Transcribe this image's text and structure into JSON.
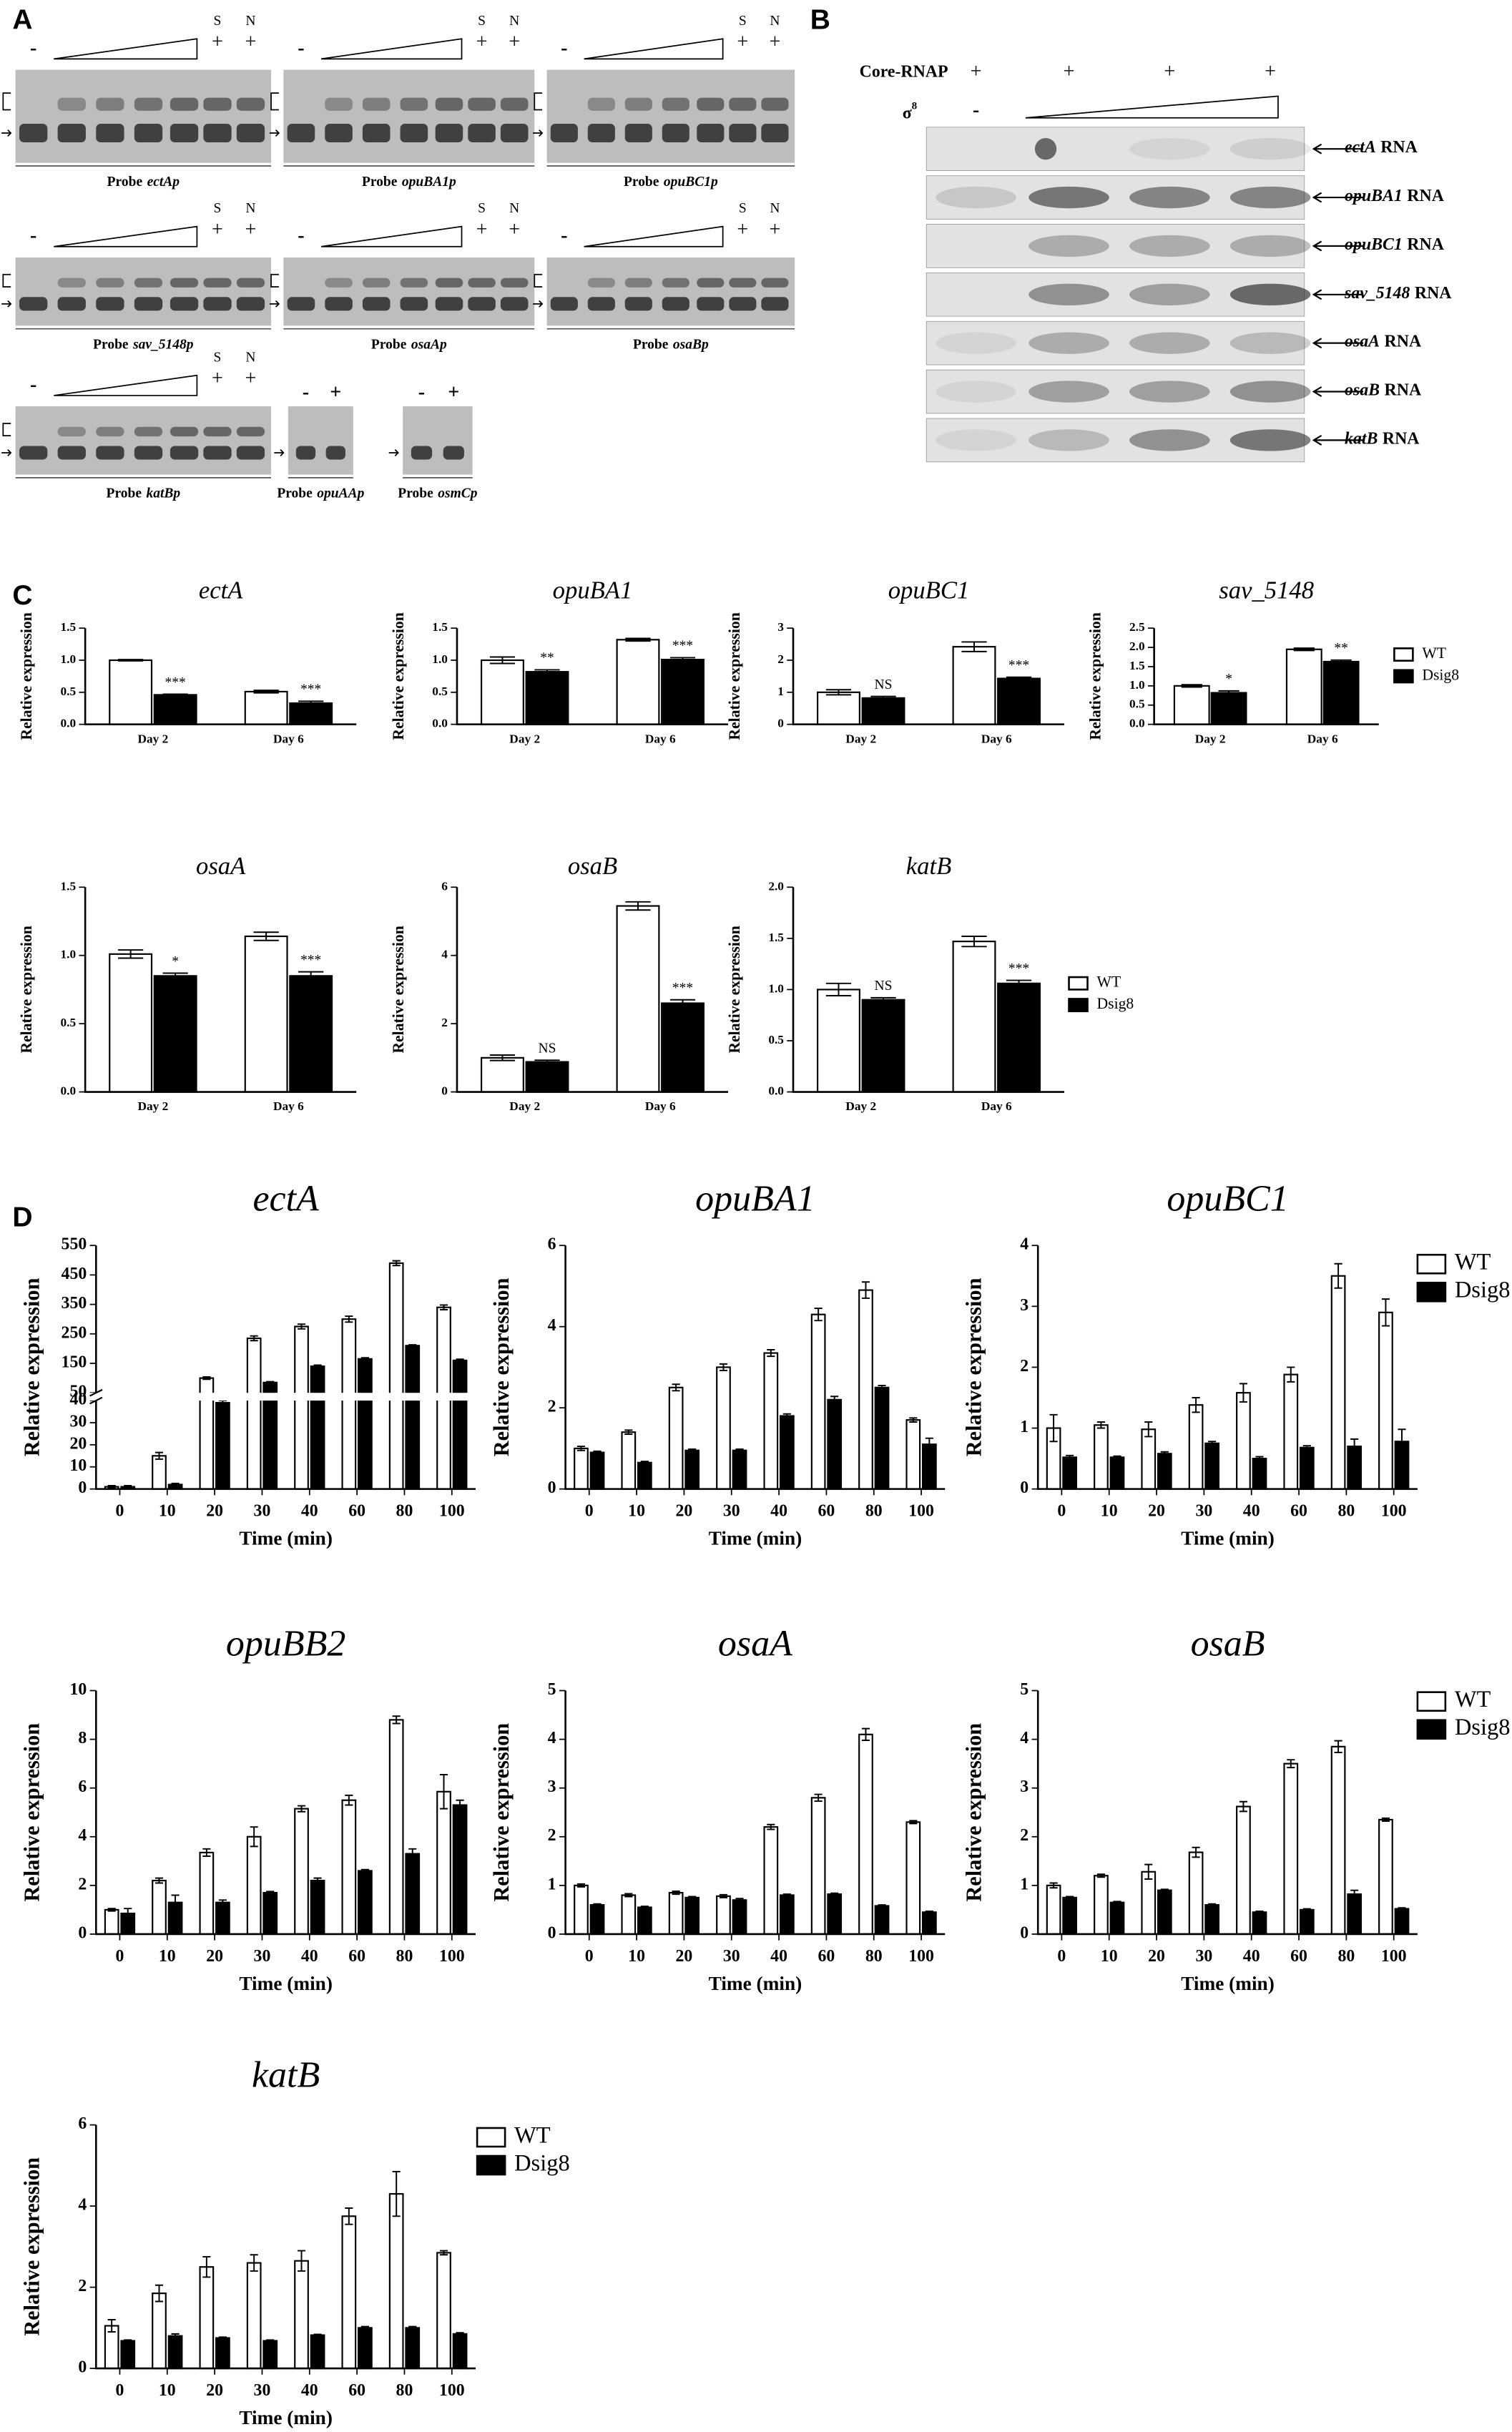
{
  "panel_labels": [
    "A",
    "B",
    "C",
    "D"
  ],
  "panel_a": {
    "gels": [
      {
        "probe": "Probe",
        "name": "ectAp",
        "signs": [
          "-",
          "+",
          "+"
        ],
        "treatments": [
          "S",
          "N"
        ]
      },
      {
        "probe": "Probe",
        "name": "opuBA1p",
        "signs": [
          "-",
          "+",
          "+"
        ],
        "treatments": [
          "S",
          "N"
        ]
      },
      {
        "probe": "Probe",
        "name": "opuBC1p",
        "signs": [
          "-",
          "+",
          "+"
        ],
        "treatments": [
          "S",
          "N"
        ]
      },
      {
        "probe": "Probe",
        "name": "sav_5148p",
        "signs": [
          "-",
          "+",
          "+"
        ],
        "treatments": [
          "S",
          "N"
        ]
      },
      {
        "probe": "Probe",
        "name": "osaAp",
        "signs": [
          "-",
          "+",
          "+"
        ],
        "treatments": [
          "S",
          "N"
        ]
      },
      {
        "probe": "Probe",
        "name": "osaBp",
        "signs": [
          "-",
          "+",
          "+"
        ],
        "treatments": [
          "S",
          "N"
        ]
      },
      {
        "probe": "Probe",
        "name": "katBp",
        "signs": [
          "-",
          "+",
          "+"
        ],
        "treatments": [
          "S",
          "N"
        ]
      },
      {
        "probe": "Probe",
        "name": "opuAAp",
        "signs": [
          "-",
          "+"
        ]
      },
      {
        "probe": "Probe",
        "name": "osmCp",
        "signs": [
          "-",
          "+"
        ]
      }
    ]
  },
  "panel_b": {
    "core_label": "Core-RNAP",
    "core_signs": [
      "+",
      "+",
      "+",
      "+"
    ],
    "sigma_label": "σ",
    "sigma_sup": "8",
    "sigma_signs": [
      "-"
    ],
    "rows": [
      {
        "gene": "ectA",
        "suffix": "RNA"
      },
      {
        "gene": "opuBA1",
        "suffix": "RNA"
      },
      {
        "gene": "opuBC1",
        "suffix": "RNA"
      },
      {
        "gene": "sav_5148",
        "suffix": "RNA"
      },
      {
        "gene": "osaA",
        "suffix": "RNA"
      },
      {
        "gene": "osaB",
        "suffix": "RNA"
      },
      {
        "gene": "katB",
        "suffix": "RNA"
      }
    ]
  },
  "chart_data": [
    {
      "type": "bar",
      "title": "ectA",
      "ylabel": "Relative expression",
      "categories": [
        "Day 2",
        "Day 6"
      ],
      "series": [
        {
          "color": "#ffffff",
          "values": [
            1.0,
            0.51
          ],
          "errors": [
            0.01,
            0.02
          ]
        },
        {
          "color": "#000000",
          "values": [
            0.46,
            0.33
          ],
          "errors": [
            0.01,
            0.03
          ]
        }
      ],
      "annotations": [
        "***",
        "***"
      ],
      "ylim": [
        0,
        1.5
      ],
      "yticks": [
        {
          "value": 0,
          "label": "0.0"
        },
        0.5,
        {
          "value": 1,
          "label": "1.0"
        },
        1.5
      ]
    },
    {
      "type": "bar",
      "title": "opuBA1",
      "ylabel": "Relative expression",
      "categories": [
        "Day 2",
        "Day 6"
      ],
      "series": [
        {
          "color": "#ffffff",
          "values": [
            1.0,
            1.32
          ],
          "errors": [
            0.05,
            0.02
          ]
        },
        {
          "color": "#000000",
          "values": [
            0.82,
            1.01
          ],
          "errors": [
            0.03,
            0.03
          ]
        }
      ],
      "annotations": [
        "**",
        "***"
      ],
      "ylim": [
        0,
        1.5
      ],
      "yticks": [
        {
          "value": 0,
          "label": "0.0"
        },
        0.5,
        {
          "value": 1,
          "label": "1.0"
        },
        1.5
      ]
    },
    {
      "type": "bar",
      "title": "opuBC1",
      "ylabel": "Relative expression",
      "categories": [
        "Day 2",
        "Day 6"
      ],
      "series": [
        {
          "color": "#ffffff",
          "values": [
            1.0,
            2.42
          ],
          "errors": [
            0.08,
            0.15
          ]
        },
        {
          "color": "#000000",
          "values": [
            0.82,
            1.43
          ],
          "errors": [
            0.05,
            0.04
          ]
        }
      ],
      "annotations": [
        "NS",
        "***"
      ],
      "ylim": [
        0,
        3
      ],
      "yticks": [
        0,
        1,
        2,
        3
      ]
    },
    {
      "type": "bar",
      "title": "sav_5148",
      "ylabel": "Relative expression",
      "categories": [
        "Day 2",
        "Day 6"
      ],
      "series": [
        {
          "name": "WT",
          "color": "#ffffff",
          "values": [
            1.0,
            1.95
          ],
          "errors": [
            0.03,
            0.03
          ]
        },
        {
          "name": "Dsig8",
          "color": "#000000",
          "values": [
            0.82,
            1.63
          ],
          "errors": [
            0.05,
            0.04
          ]
        }
      ],
      "annotations": [
        "*",
        "**"
      ],
      "ylim": [
        0,
        2.5
      ],
      "yticks": [
        {
          "value": 0,
          "label": "0.0"
        },
        0.5,
        {
          "value": 1,
          "label": "1.0"
        },
        1.5,
        {
          "value": 2,
          "label": "2.0"
        },
        2.5
      ],
      "legend": "right"
    },
    {
      "type": "bar",
      "title": "osaA",
      "ylabel": "Relative expression",
      "categories": [
        "Day 2",
        "Day 6"
      ],
      "series": [
        {
          "color": "#ffffff",
          "values": [
            1.01,
            1.14
          ],
          "errors": [
            0.03,
            0.03
          ]
        },
        {
          "color": "#000000",
          "values": [
            0.85,
            0.85
          ],
          "errors": [
            0.02,
            0.03
          ]
        }
      ],
      "annotations": [
        "*",
        "***"
      ],
      "ylim": [
        0,
        1.5
      ],
      "yticks": [
        {
          "value": 0,
          "label": "0.0"
        },
        0.5,
        {
          "value": 1,
          "label": "1.0"
        },
        1.5
      ]
    },
    {
      "type": "bar",
      "title": "osaB",
      "ylabel": "Relative expression",
      "categories": [
        "Day 2",
        "Day 6"
      ],
      "series": [
        {
          "color": "#ffffff",
          "values": [
            1.0,
            5.45
          ],
          "errors": [
            0.08,
            0.12
          ]
        },
        {
          "color": "#000000",
          "values": [
            0.88,
            2.6
          ],
          "errors": [
            0.05,
            0.1
          ]
        }
      ],
      "annotations": [
        "NS",
        "***"
      ],
      "ylim": [
        0,
        6
      ],
      "yticks": [
        0,
        2,
        4,
        6
      ]
    },
    {
      "type": "bar",
      "title": "katB",
      "ylabel": "Relative expression",
      "categories": [
        "Day 2",
        "Day 6"
      ],
      "series": [
        {
          "name": "WT",
          "color": "#ffffff",
          "values": [
            1.0,
            1.47
          ],
          "errors": [
            0.06,
            0.05
          ]
        },
        {
          "name": "Dsig8",
          "color": "#000000",
          "values": [
            0.9,
            1.06
          ],
          "errors": [
            0.02,
            0.03
          ]
        }
      ],
      "annotations": [
        "NS",
        "***"
      ],
      "ylim": [
        0,
        2
      ],
      "yticks": [
        {
          "value": 0,
          "label": "0.0"
        },
        0.5,
        {
          "value": 1,
          "label": "1.0"
        },
        1.5,
        {
          "value": 2,
          "label": "2.0"
        }
      ],
      "legend": "right"
    },
    {
      "type": "bar",
      "title": "ectA",
      "ylabel": "Relative expression",
      "xlabel": "Time (min)",
      "categories": [
        "0",
        "10",
        "20",
        "30",
        "40",
        "60",
        "80",
        "100"
      ],
      "series": [
        {
          "color": "#ffffff",
          "values": [
            1,
            15,
            100,
            235,
            275,
            300,
            490,
            340
          ],
          "errors": [
            0.5,
            1.5,
            4,
            8,
            8,
            10,
            8,
            8
          ]
        },
        {
          "color": "#000000",
          "values": [
            1,
            2,
            39,
            85,
            140,
            165,
            210,
            160
          ],
          "errors": [
            0.5,
            0.5,
            1,
            3,
            4,
            4,
            3,
            4
          ]
        }
      ],
      "ylim": [
        0,
        550
      ],
      "y_break": [
        40,
        50
      ],
      "yticks": [
        0,
        10,
        20,
        30,
        40,
        50,
        150,
        250,
        350,
        450,
        550
      ]
    },
    {
      "type": "bar",
      "title": "opuBA1",
      "ylabel": "Relative expression",
      "xlabel": "Time (min)",
      "categories": [
        "0",
        "10",
        "20",
        "30",
        "40",
        "60",
        "80",
        "100"
      ],
      "series": [
        {
          "color": "#ffffff",
          "values": [
            1.0,
            1.4,
            2.5,
            3.0,
            3.35,
            4.3,
            4.9,
            1.7
          ],
          "errors": [
            0.05,
            0.05,
            0.08,
            0.08,
            0.08,
            0.15,
            0.2,
            0.05
          ]
        },
        {
          "color": "#000000",
          "values": [
            0.9,
            0.65,
            0.95,
            0.95,
            1.8,
            2.2,
            2.5,
            1.1
          ],
          "errors": [
            0.03,
            0.03,
            0.03,
            0.03,
            0.05,
            0.08,
            0.05,
            0.15
          ]
        }
      ],
      "ylim": [
        0,
        6
      ],
      "yticks": [
        0,
        2,
        4,
        6
      ]
    },
    {
      "type": "bar",
      "title": "opuBC1",
      "ylabel": "Relative expression",
      "xlabel": "Time (min)",
      "categories": [
        "0",
        "10",
        "20",
        "30",
        "40",
        "60",
        "80",
        "100"
      ],
      "series": [
        {
          "name": "WT",
          "color": "#ffffff",
          "values": [
            1.0,
            1.05,
            0.98,
            1.38,
            1.58,
            1.88,
            3.5,
            2.9
          ],
          "errors": [
            0.22,
            0.05,
            0.12,
            0.12,
            0.15,
            0.12,
            0.2,
            0.22
          ]
        },
        {
          "name": "Dsig8",
          "color": "#000000",
          "values": [
            0.52,
            0.52,
            0.58,
            0.75,
            0.5,
            0.68,
            0.7,
            0.78
          ],
          "errors": [
            0.03,
            0.02,
            0.03,
            0.03,
            0.03,
            0.03,
            0.12,
            0.2
          ]
        }
      ],
      "ylim": [
        0,
        4
      ],
      "yticks": [
        0,
        1,
        2,
        3,
        4
      ],
      "legend": "right"
    },
    {
      "type": "bar",
      "title": "opuBB2",
      "ylabel": "Relative expression",
      "xlabel": "Time (min)",
      "categories": [
        "0",
        "10",
        "20",
        "30",
        "40",
        "60",
        "80",
        "100"
      ],
      "series": [
        {
          "color": "#ffffff",
          "values": [
            1.0,
            2.2,
            3.35,
            4.0,
            5.15,
            5.5,
            8.8,
            5.85
          ],
          "errors": [
            0.05,
            0.1,
            0.15,
            0.4,
            0.12,
            0.2,
            0.15,
            0.7
          ]
        },
        {
          "color": "#000000",
          "values": [
            0.85,
            1.3,
            1.3,
            1.7,
            2.2,
            2.6,
            3.3,
            5.3
          ],
          "errors": [
            0.2,
            0.3,
            0.1,
            0.05,
            0.1,
            0.05,
            0.2,
            0.2
          ]
        }
      ],
      "ylim": [
        0,
        10
      ],
      "yticks": [
        0,
        2,
        4,
        6,
        8,
        10
      ]
    },
    {
      "type": "bar",
      "title": "osaA",
      "ylabel": "Relative expression",
      "xlabel": "Time (min)",
      "categories": [
        "0",
        "10",
        "20",
        "30",
        "40",
        "60",
        "80",
        "100"
      ],
      "series": [
        {
          "color": "#ffffff",
          "values": [
            1.0,
            0.8,
            0.85,
            0.78,
            2.2,
            2.8,
            4.1,
            2.3
          ],
          "errors": [
            0.03,
            0.03,
            0.03,
            0.03,
            0.05,
            0.07,
            0.12,
            0.03
          ]
        },
        {
          "color": "#000000",
          "values": [
            0.6,
            0.55,
            0.75,
            0.7,
            0.8,
            0.82,
            0.58,
            0.45
          ],
          "errors": [
            0.02,
            0.02,
            0.02,
            0.03,
            0.02,
            0.02,
            0.02,
            0.02
          ]
        }
      ],
      "ylim": [
        0,
        5
      ],
      "yticks": [
        0,
        1,
        2,
        3,
        4,
        5
      ]
    },
    {
      "type": "bar",
      "title": "osaB",
      "ylabel": "Relative expression",
      "xlabel": "Time (min)",
      "categories": [
        "0",
        "10",
        "20",
        "30",
        "40",
        "60",
        "80",
        "100"
      ],
      "series": [
        {
          "name": "WT",
          "color": "#ffffff",
          "values": [
            1.0,
            1.2,
            1.28,
            1.68,
            2.62,
            3.5,
            3.85,
            2.35
          ],
          "errors": [
            0.05,
            0.03,
            0.15,
            0.1,
            0.1,
            0.08,
            0.12,
            0.03
          ]
        },
        {
          "name": "Dsig8",
          "color": "#000000",
          "values": [
            0.75,
            0.65,
            0.9,
            0.6,
            0.45,
            0.5,
            0.82,
            0.52
          ],
          "errors": [
            0.02,
            0.02,
            0.02,
            0.02,
            0.02,
            0.02,
            0.08,
            0.02
          ]
        }
      ],
      "ylim": [
        0,
        5
      ],
      "yticks": [
        0,
        1,
        2,
        3,
        4,
        5
      ],
      "legend": "right"
    },
    {
      "type": "bar",
      "title": "katB",
      "ylabel": "Relative expression",
      "xlabel": "Time (min)",
      "categories": [
        "0",
        "10",
        "20",
        "30",
        "40",
        "60",
        "80",
        "100"
      ],
      "series": [
        {
          "name": "WT",
          "color": "#ffffff",
          "values": [
            1.05,
            1.85,
            2.5,
            2.6,
            2.65,
            3.75,
            4.3,
            2.85
          ],
          "errors": [
            0.15,
            0.2,
            0.25,
            0.2,
            0.25,
            0.2,
            0.55,
            0.05
          ]
        },
        {
          "name": "Dsig8",
          "color": "#000000",
          "values": [
            0.68,
            0.8,
            0.75,
            0.68,
            0.82,
            1.0,
            1.0,
            0.85
          ],
          "errors": [
            0.02,
            0.05,
            0.02,
            0.02,
            0.02,
            0.03,
            0.03,
            0.03
          ]
        }
      ],
      "ylim": [
        0,
        6
      ],
      "yticks": [
        0,
        2,
        4,
        6
      ],
      "legend": "right"
    }
  ]
}
